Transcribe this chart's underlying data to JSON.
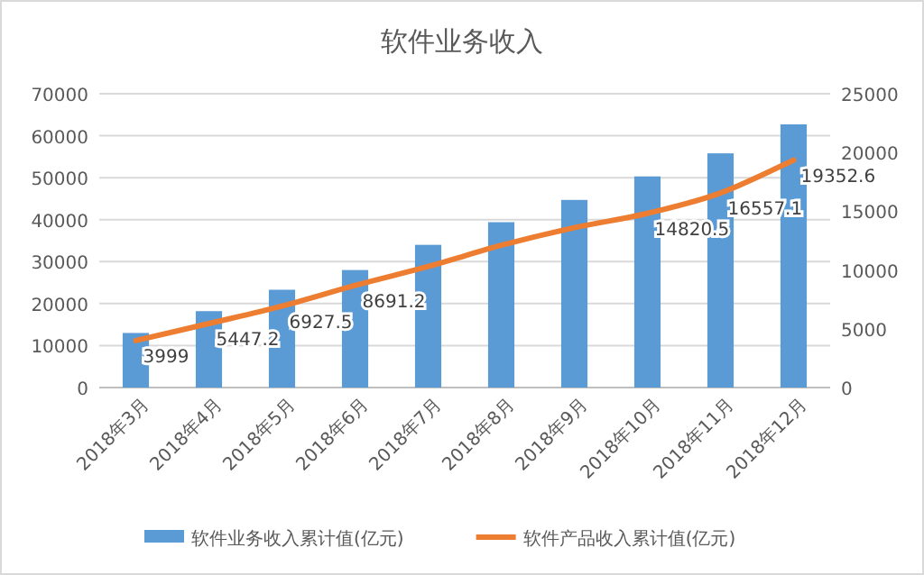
{
  "chart_data": {
    "type": "bar",
    "title": "软件业务收入",
    "categories": [
      "2018年3月",
      "2018年4月",
      "2018年5月",
      "2018年6月",
      "2018年7月",
      "2018年8月",
      "2018年9月",
      "2018年10月",
      "2018年11月",
      "2018年12月"
    ],
    "series": [
      {
        "name": "软件业务收入累计值(亿元)",
        "color": "#5b9bd5",
        "values": [
          13000,
          18200,
          23300,
          28000,
          34000,
          39400,
          44700,
          50300,
          55800,
          62700
        ]
      },
      {
        "name": "软件产品收入累计值(亿元)",
        "type": "line",
        "axis": "y2",
        "color": "#ed7d31",
        "values": [
          3999,
          5447.2,
          6927.5,
          8691.2,
          10300,
          12100,
          13600,
          14820.5,
          16557.1,
          19352.6
        ],
        "value_labels": [
          "3999",
          "5447.2",
          "6927.5",
          "8691.2",
          null,
          null,
          null,
          "14820.5",
          "16557.1",
          "19352.6"
        ]
      }
    ],
    "ylim": [
      0,
      70000
    ],
    "yticks": [
      0,
      10000,
      20000,
      30000,
      40000,
      50000,
      60000,
      70000
    ],
    "y2lim": [
      0,
      25000
    ],
    "y2ticks": [
      0,
      5000,
      10000,
      15000,
      20000,
      25000
    ],
    "grid": "y",
    "legend": "bottom"
  }
}
